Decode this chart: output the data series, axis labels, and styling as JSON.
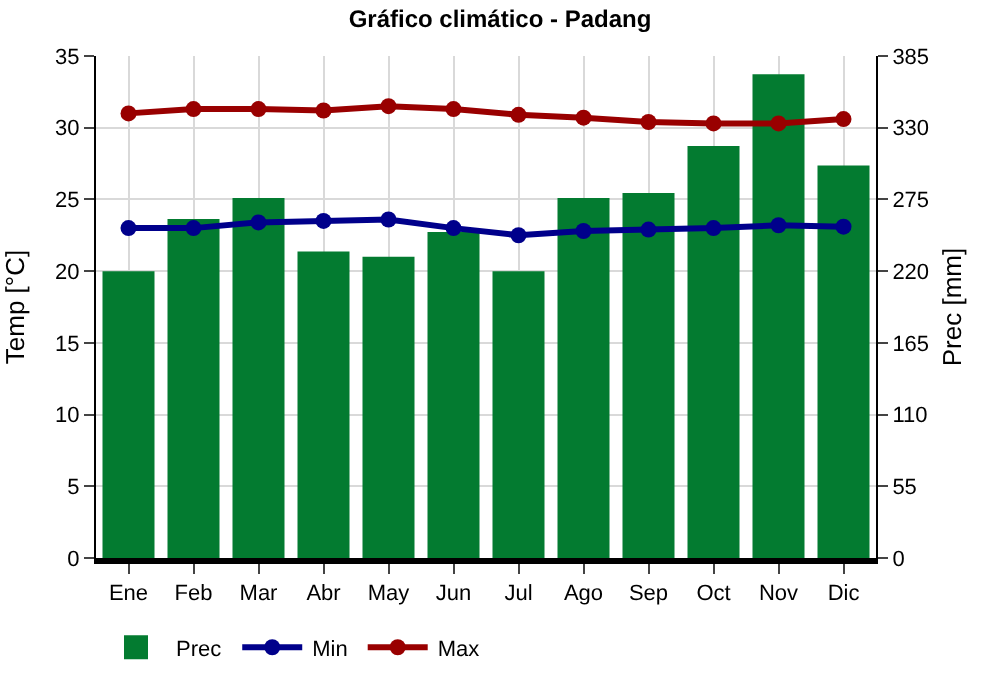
{
  "chart_data": {
    "type": "bar",
    "title": "Gráfico climático - Padang",
    "ylabel": "Temp [°C]",
    "y2label": "Prec [mm]",
    "categories": [
      "Ene",
      "Feb",
      "Mar",
      "Abr",
      "May",
      "Jun",
      "Jul",
      "Ago",
      "Sep",
      "Oct",
      "Nov",
      "Dic"
    ],
    "series": [
      {
        "name": "Prec",
        "axis": "y2",
        "color": "#037b30",
        "values": [
          220,
          260,
          276,
          235,
          231,
          250,
          220,
          276,
          280,
          316,
          371,
          301
        ]
      },
      {
        "name": "Min",
        "type": "line",
        "color": "#00008b",
        "values": [
          23.0,
          23.0,
          23.4,
          23.5,
          23.6,
          23.0,
          22.5,
          22.8,
          22.9,
          23.0,
          23.2,
          23.1
        ]
      },
      {
        "name": "Max",
        "type": "line",
        "color": "#990000",
        "values": [
          31.0,
          31.3,
          31.3,
          31.2,
          31.5,
          31.3,
          30.9,
          30.7,
          30.4,
          30.3,
          30.3,
          30.6
        ]
      }
    ],
    "ylim": [
      0,
      35
    ],
    "yticks": [
      0,
      5,
      10,
      15,
      20,
      25,
      30,
      35
    ],
    "y2lim": [
      0,
      385
    ],
    "y2ticks": [
      0,
      55,
      110,
      165,
      220,
      275,
      330,
      385
    ],
    "grid": true,
    "legend": "bottom left",
    "marker": "circle"
  }
}
